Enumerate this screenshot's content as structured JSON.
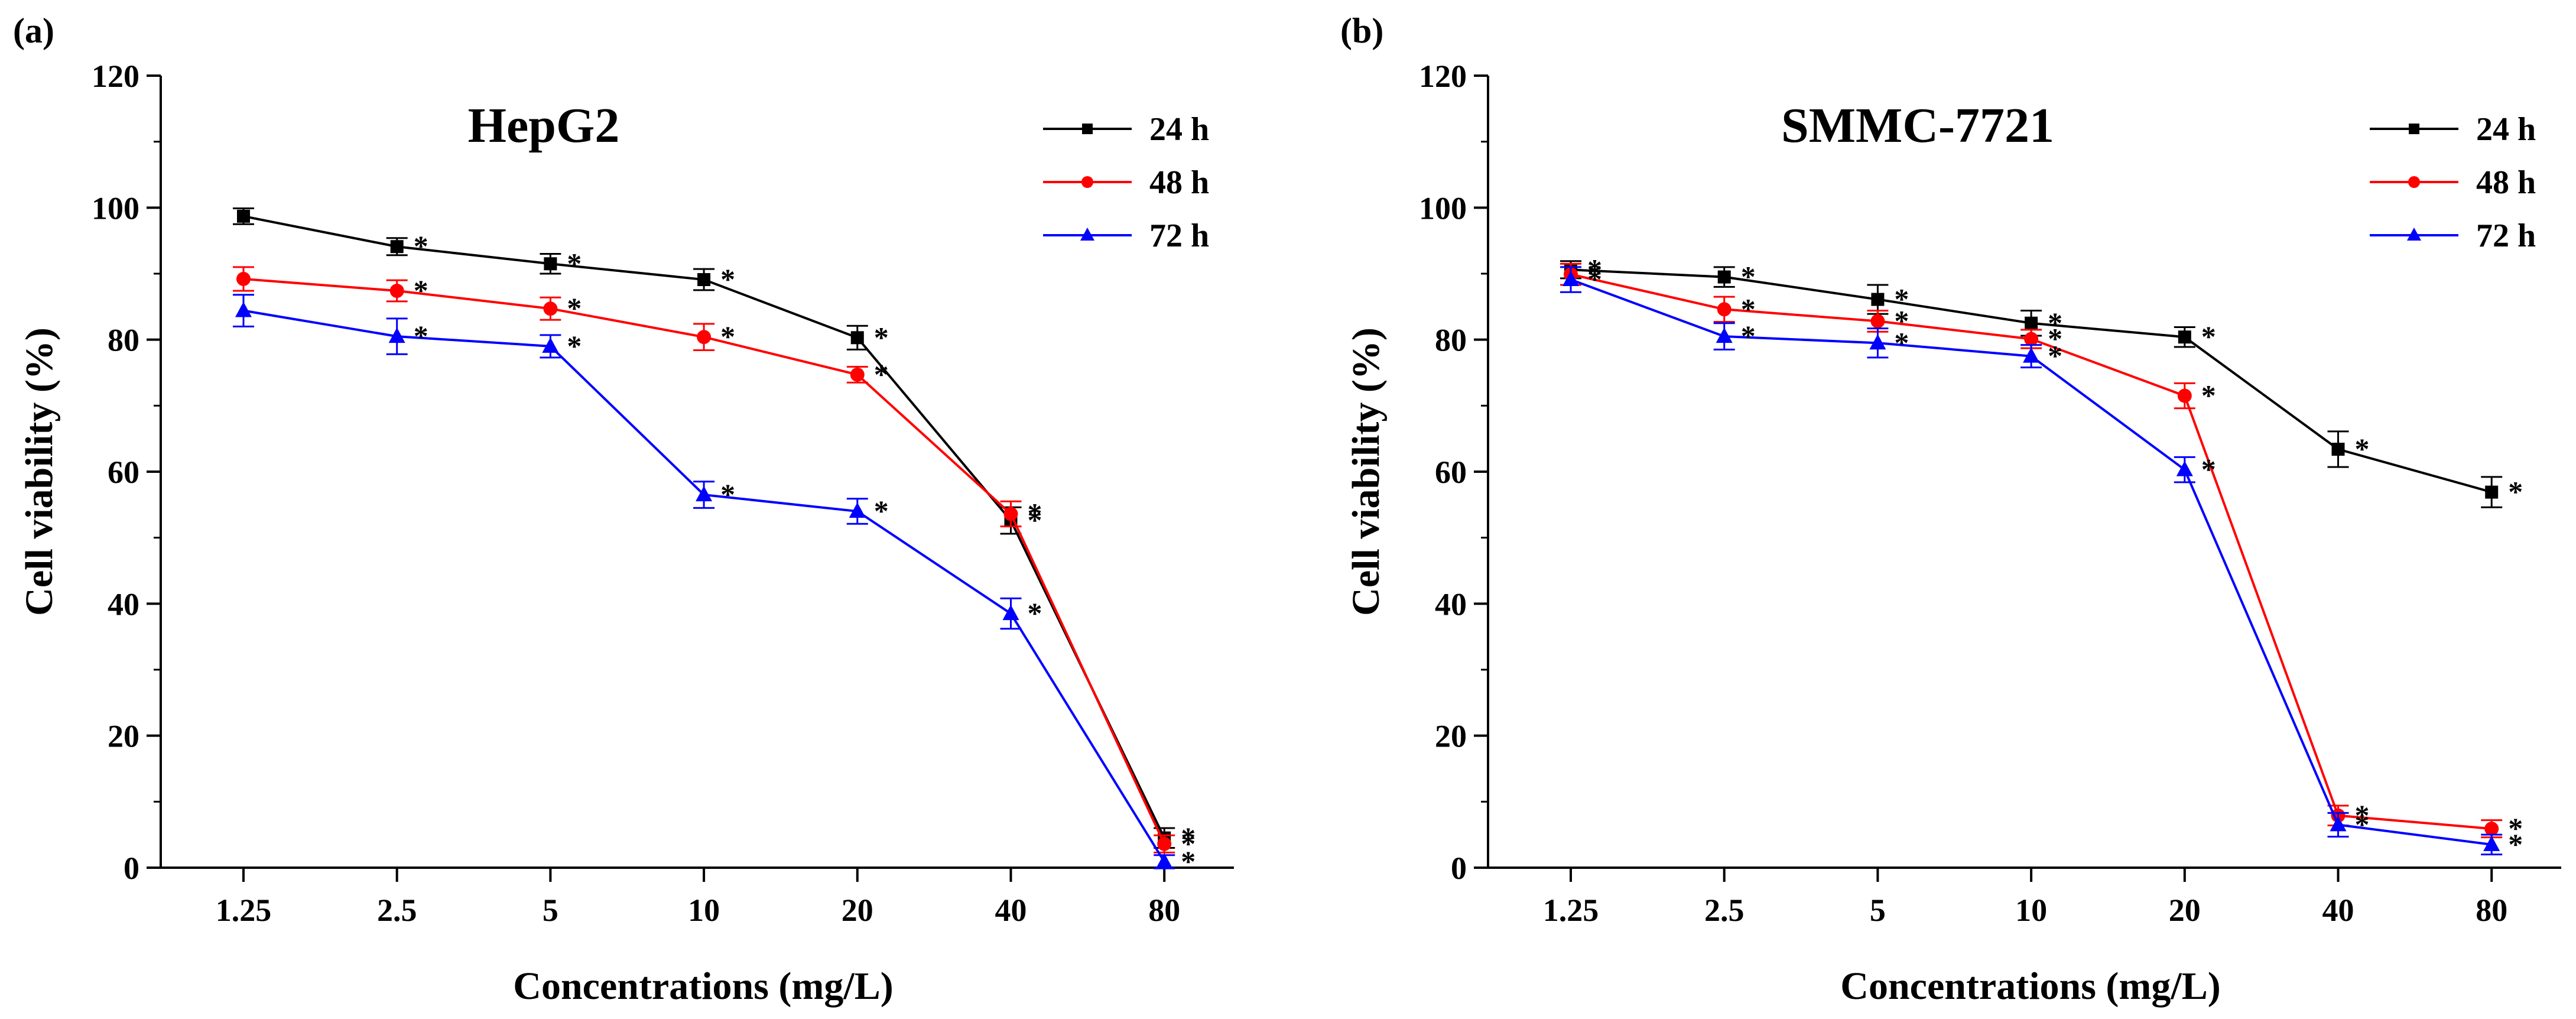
{
  "chart_data": [
    {
      "type": "line",
      "panel_label": "(a)",
      "title": "HepG2",
      "xlabel": "Concentrations (mg/L)",
      "ylabel": "Cell viability (%)",
      "ylim": [
        0,
        120
      ],
      "yticks": [
        "0",
        "20",
        "40",
        "60",
        "80",
        "100",
        "120"
      ],
      "categories": [
        "1.25",
        "2.5",
        "5",
        "10",
        "20",
        "40",
        "80"
      ],
      "legend_position": "top-right",
      "series": [
        {
          "name": "24 h",
          "color": "#000000",
          "marker": "square",
          "values": [
            98.7,
            94.1,
            91.5,
            89.1,
            80.3,
            52.6,
            4.5
          ],
          "errors": [
            1.2,
            1.3,
            1.5,
            1.6,
            1.8,
            2.0,
            1.5
          ],
          "significant": [
            false,
            true,
            true,
            true,
            true,
            true,
            true
          ]
        },
        {
          "name": "48 h",
          "color": "#ff0000",
          "marker": "circle",
          "values": [
            89.2,
            87.4,
            84.7,
            80.4,
            74.7,
            53.6,
            3.6
          ],
          "errors": [
            1.8,
            1.6,
            1.7,
            2.0,
            1.2,
            1.9,
            1.3
          ],
          "significant": [
            false,
            true,
            true,
            true,
            true,
            true,
            true
          ]
        },
        {
          "name": "72 h",
          "color": "#0000ff",
          "marker": "triangle",
          "values": [
            84.4,
            80.5,
            79.0,
            56.5,
            54.0,
            38.5,
            0.9
          ],
          "errors": [
            2.4,
            2.7,
            1.7,
            2.0,
            1.9,
            2.3,
            1.0
          ],
          "significant": [
            false,
            true,
            true,
            true,
            true,
            true,
            true
          ]
        }
      ]
    },
    {
      "type": "line",
      "panel_label": "(b)",
      "title": "SMMC-7721",
      "xlabel": "Concentrations (mg/L)",
      "ylabel": "Cell viability (%)",
      "ylim": [
        0,
        120
      ],
      "yticks": [
        "0",
        "20",
        "40",
        "60",
        "80",
        "100",
        "120"
      ],
      "categories": [
        "1.25",
        "2.5",
        "5",
        "10",
        "20",
        "40",
        "80"
      ],
      "legend_position": "top-right",
      "series": [
        {
          "name": "24 h",
          "color": "#000000",
          "marker": "square",
          "values": [
            90.6,
            89.5,
            86.1,
            82.5,
            80.4,
            63.4,
            56.9
          ],
          "errors": [
            1.3,
            1.5,
            2.2,
            1.9,
            1.5,
            2.7,
            2.3
          ],
          "significant": [
            true,
            true,
            true,
            true,
            true,
            true,
            true
          ]
        },
        {
          "name": "48 h",
          "color": "#ff0000",
          "marker": "circle",
          "values": [
            89.9,
            84.6,
            82.8,
            80.1,
            71.5,
            7.9,
            5.9
          ],
          "errors": [
            1.6,
            1.9,
            1.6,
            1.4,
            1.9,
            1.5,
            1.3
          ],
          "significant": [
            true,
            true,
            true,
            true,
            true,
            true,
            true
          ]
        },
        {
          "name": "72 h",
          "color": "#0000ff",
          "marker": "triangle",
          "values": [
            89.1,
            80.5,
            79.5,
            77.5,
            60.3,
            6.5,
            3.5
          ],
          "errors": [
            1.9,
            2.0,
            2.2,
            1.7,
            1.9,
            1.8,
            1.5
          ],
          "significant": [
            true,
            true,
            true,
            true,
            true,
            true,
            true
          ]
        }
      ]
    }
  ]
}
